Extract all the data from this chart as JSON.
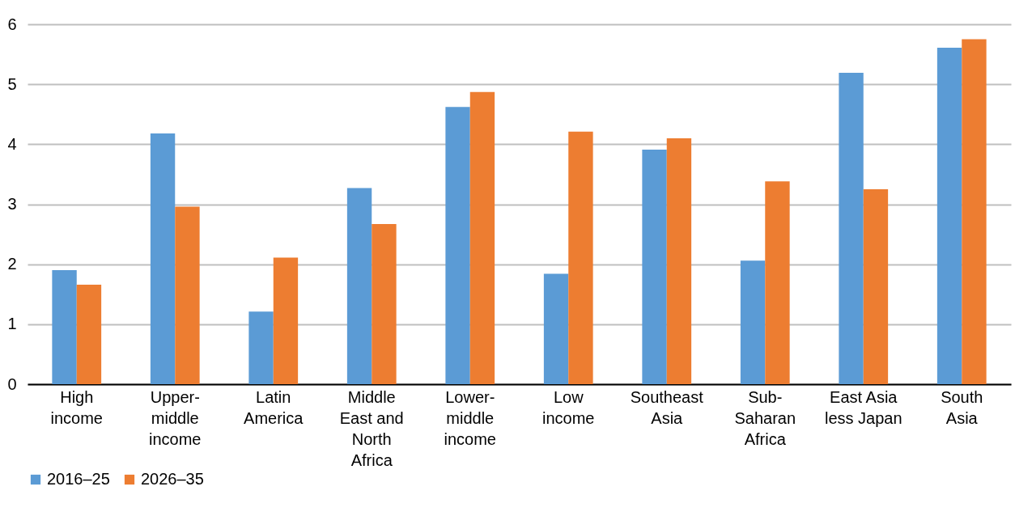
{
  "chart_data": {
    "type": "bar",
    "categories": [
      "High income",
      "Upper-middle income",
      "Latin America",
      "Middle East and North Africa",
      "Lower-middle income",
      "Low income",
      "Southeast Asia",
      "Sub-Saharan Africa",
      "East Asia less Japan",
      "South Asia"
    ],
    "series": [
      {
        "name": "2016–25",
        "color": "#5b9bd5",
        "values": [
          1.9,
          4.18,
          1.21,
          3.27,
          4.62,
          1.84,
          3.91,
          2.06,
          5.19,
          5.61
        ]
      },
      {
        "name": "2026–35",
        "color": "#ed7d31",
        "values": [
          1.66,
          2.96,
          2.11,
          2.67,
          4.87,
          4.21,
          4.1,
          3.38,
          3.25,
          5.75
        ]
      }
    ],
    "ylim": [
      0,
      6
    ],
    "yticks": [
      0,
      1,
      2,
      3,
      4,
      5,
      6
    ],
    "grid": "y",
    "legend": "bottom"
  }
}
